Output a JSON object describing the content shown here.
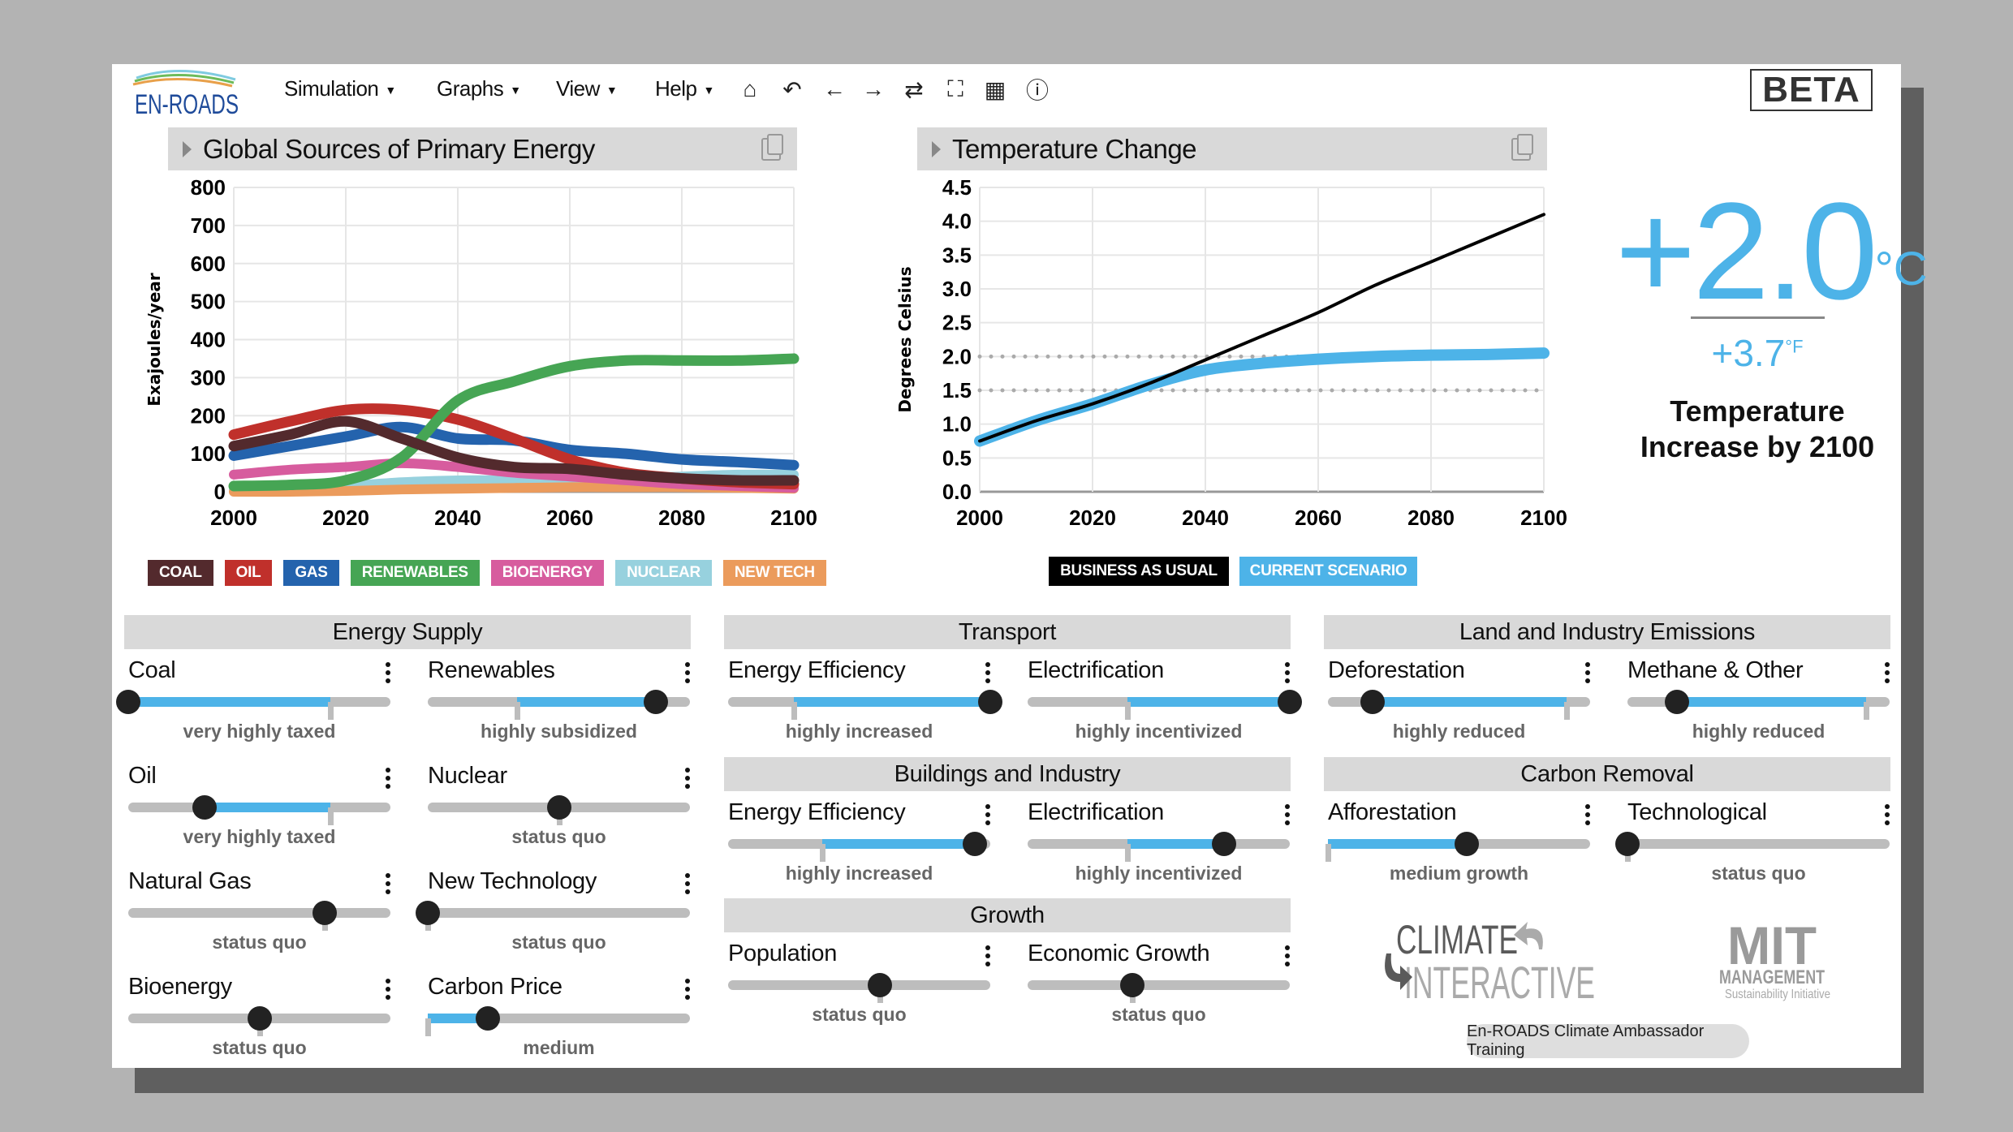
{
  "app": {
    "logo_text": "EN-ROADS",
    "beta_label": "BETA"
  },
  "menu": [
    {
      "label": "Simulation"
    },
    {
      "label": "Graphs"
    },
    {
      "label": "View"
    },
    {
      "label": "Help"
    }
  ],
  "toolbar_icons": [
    "home-icon",
    "undo-icon",
    "back-arrow-icon",
    "forward-arrow-icon",
    "refresh-icon",
    "fullscreen-icon",
    "table-icon",
    "info-icon"
  ],
  "graph_left": {
    "title": "Global Sources of Primary Energy",
    "legend": [
      {
        "label": "COAL",
        "color": "#532a2d"
      },
      {
        "label": "OIL",
        "color": "#c0302b"
      },
      {
        "label": "GAS",
        "color": "#2463ad"
      },
      {
        "label": "RENEWABLES",
        "color": "#46a554"
      },
      {
        "label": "BIOENERGY",
        "color": "#d75c9e"
      },
      {
        "label": "NUCLEAR",
        "color": "#97d1de"
      },
      {
        "label": "NEW TECH",
        "color": "#eb9b5c"
      }
    ]
  },
  "graph_right": {
    "title": "Temperature Change",
    "legend": [
      {
        "label": "BUSINESS AS USUAL",
        "color": "#000000"
      },
      {
        "label": "CURRENT SCENARIO",
        "color": "#4db3e8"
      }
    ]
  },
  "chart_data": [
    {
      "type": "line",
      "title": "Global Sources of Primary Energy",
      "xlabel": "",
      "ylabel": "Exajoules/year",
      "xlim": [
        2000,
        2100
      ],
      "ylim": [
        0,
        800
      ],
      "xticks": [
        "2000",
        "2020",
        "2040",
        "2060",
        "2080",
        "2100"
      ],
      "yticks": [
        "0",
        "100",
        "200",
        "300",
        "400",
        "500",
        "600",
        "700",
        "800"
      ],
      "grid": true,
      "legend": "bottom",
      "x": [
        2000,
        2010,
        2020,
        2030,
        2040,
        2050,
        2060,
        2070,
        2080,
        2090,
        2100
      ],
      "series": [
        {
          "name": "NUCLEAR",
          "color": "#97d1de",
          "values": [
            5,
            10,
            15,
            25,
            30,
            30,
            30,
            35,
            40,
            45,
            45
          ]
        },
        {
          "name": "NEW TECH",
          "color": "#eb9b5c",
          "values": [
            0,
            0,
            2,
            6,
            8,
            10,
            12,
            12,
            12,
            10,
            8
          ]
        },
        {
          "name": "BIOENERGY",
          "color": "#d75c9e",
          "values": [
            45,
            58,
            65,
            75,
            65,
            50,
            40,
            30,
            20,
            15,
            10
          ]
        },
        {
          "name": "GAS",
          "color": "#2463ad",
          "values": [
            95,
            120,
            145,
            170,
            140,
            135,
            110,
            100,
            85,
            78,
            70
          ]
        },
        {
          "name": "OIL",
          "color": "#c0302b",
          "values": [
            150,
            185,
            215,
            215,
            190,
            140,
            85,
            50,
            35,
            25,
            20
          ]
        },
        {
          "name": "RENEWABLES",
          "color": "#46a554",
          "values": [
            15,
            18,
            30,
            90,
            240,
            290,
            330,
            345,
            345,
            345,
            350
          ]
        },
        {
          "name": "COAL",
          "color": "#532a2d",
          "values": [
            120,
            150,
            185,
            140,
            90,
            65,
            60,
            45,
            35,
            30,
            30
          ]
        }
      ]
    },
    {
      "type": "line",
      "title": "Temperature Change",
      "xlabel": "",
      "ylabel": "Degrees Celsius",
      "xlim": [
        2000,
        2100
      ],
      "ylim": [
        0,
        4.5
      ],
      "xticks": [
        "2000",
        "2020",
        "2040",
        "2060",
        "2080",
        "2100"
      ],
      "yticks": [
        "0.0",
        "0.5",
        "1.0",
        "1.5",
        "2.0",
        "2.5",
        "3.0",
        "3.5",
        "4.0",
        "4.5"
      ],
      "grid": true,
      "reference_lines": [
        1.5,
        2.0
      ],
      "legend": "bottom",
      "x": [
        2000,
        2010,
        2020,
        2030,
        2040,
        2050,
        2060,
        2070,
        2080,
        2090,
        2100
      ],
      "series": [
        {
          "name": "CURRENT SCENARIO",
          "color": "#4db3e8",
          "values": [
            0.75,
            1.05,
            1.3,
            1.58,
            1.8,
            1.9,
            1.96,
            2.0,
            2.02,
            2.03,
            2.05
          ]
        },
        {
          "name": "BUSINESS AS USUAL",
          "color": "#000000",
          "values": [
            0.75,
            1.05,
            1.3,
            1.6,
            1.95,
            2.3,
            2.65,
            3.05,
            3.4,
            3.75,
            4.1
          ]
        }
      ]
    }
  ],
  "temperature": {
    "celsius": "+2.0",
    "celsius_unit": "°C",
    "fahrenheit": "+3.7",
    "fahrenheit_unit": "°F",
    "label": "Temperature Increase by 2100"
  },
  "panels": [
    {
      "title": "Energy Supply",
      "sliders": [
        {
          "label": "Coal",
          "caption": "very highly taxed",
          "value": 0.0,
          "default": 0.77
        },
        {
          "label": "Renewables",
          "caption": "highly subsidized",
          "value": 0.87,
          "default": 0.34
        },
        {
          "label": "Oil",
          "caption": "very highly taxed",
          "value": 0.29,
          "default": 0.77
        },
        {
          "label": "Nuclear",
          "caption": "status quo",
          "value": 0.5,
          "default": 0.5
        },
        {
          "label": "Natural Gas",
          "caption": "status quo",
          "value": 0.75,
          "default": 0.75
        },
        {
          "label": "New Technology",
          "caption": "status quo",
          "value": 0.0,
          "default": 0.0
        },
        {
          "label": "Bioenergy",
          "caption": "status quo",
          "value": 0.5,
          "default": 0.5
        },
        {
          "label": "Carbon Price",
          "caption": "medium",
          "value": 0.23,
          "default": 0.0
        }
      ]
    },
    {
      "title": "Transport",
      "sliders": [
        {
          "label": "Energy Efficiency",
          "caption": "highly increased",
          "value": 1.0,
          "default": 0.25
        },
        {
          "label": "Electrification",
          "caption": "highly incentivized",
          "value": 1.0,
          "default": 0.38
        }
      ]
    },
    {
      "title": "Buildings and Industry",
      "sliders": [
        {
          "label": "Energy Efficiency",
          "caption": "highly increased",
          "value": 0.94,
          "default": 0.36
        },
        {
          "label": "Electrification",
          "caption": "highly incentivized",
          "value": 0.75,
          "default": 0.38
        }
      ]
    },
    {
      "title": "Growth",
      "sliders": [
        {
          "label": "Population",
          "caption": "status quo",
          "value": 0.58,
          "default": 0.58
        },
        {
          "label": "Economic Growth",
          "caption": "status quo",
          "value": 0.4,
          "default": 0.4
        }
      ]
    },
    {
      "title": "Land and Industry Emissions",
      "sliders": [
        {
          "label": "Deforestation",
          "caption": "highly reduced",
          "value": 0.17,
          "default": 0.91
        },
        {
          "label": "Methane & Other",
          "caption": "highly reduced",
          "value": 0.19,
          "default": 0.91
        }
      ]
    },
    {
      "title": "Carbon Removal",
      "sliders": [
        {
          "label": "Afforestation",
          "caption": "medium growth",
          "value": 0.53,
          "default": 0.0
        },
        {
          "label": "Technological",
          "caption": "status quo",
          "value": 0.0,
          "default": 0.0
        }
      ]
    }
  ],
  "slider_color": "#4db3e8",
  "logos": {
    "climate_interactive": [
      "CLIMATE",
      "INTERACTIVE"
    ],
    "mit": [
      "MIT",
      "MANAGEMENT",
      "Sustainability Initiative"
    ]
  },
  "footer": {
    "training_button": "En-ROADS Climate Ambassador Training"
  }
}
